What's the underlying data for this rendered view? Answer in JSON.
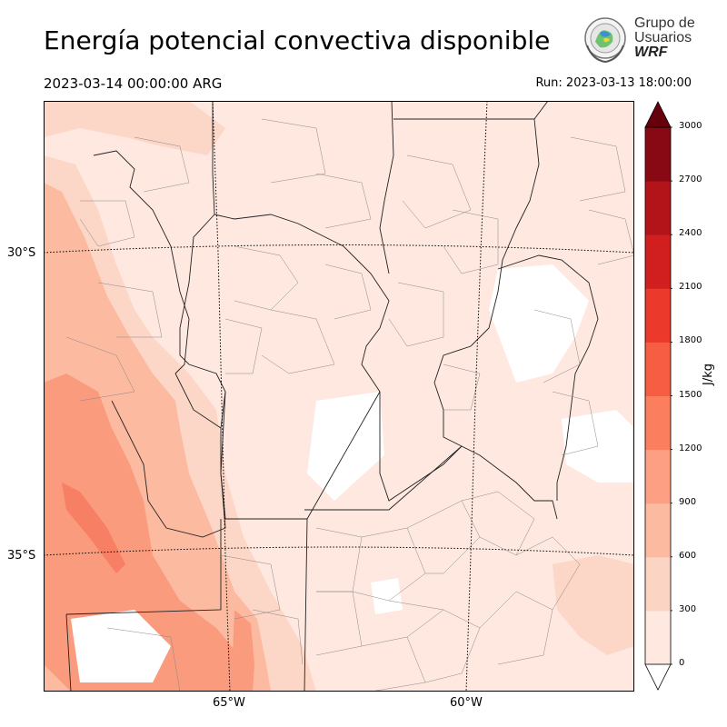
{
  "header": {
    "title": "Energía potencial convectiva disponible",
    "valid_time": "2023-03-14 00:00:00 ARG",
    "run_time": "Run: 2023-03-13 18:00:00"
  },
  "logo": {
    "line1": "Grupo de",
    "line2": "Usuarios",
    "line3": "WRF"
  },
  "axes": {
    "lat_labels": [
      "30°S",
      "35°S"
    ],
    "lon_labels": [
      "65°W",
      "60°W"
    ]
  },
  "colorbar": {
    "unit": "J/kg",
    "ticks": [
      "0",
      "300",
      "600",
      "900",
      "1200",
      "1500",
      "1800",
      "2100",
      "2400",
      "2700",
      "3000"
    ],
    "colors": [
      "#fee8e0",
      "#fcd4c4",
      "#fcbba1",
      "#fc9f82",
      "#fb7f5e",
      "#f65d43",
      "#eb3a2c",
      "#d11f1f",
      "#b3141a",
      "#880913",
      "#67000d"
    ]
  },
  "map_colors": {
    "background": "#fee8e0",
    "level1": "#fcd6c6",
    "level2": "#fcbba1",
    "level3": "#fa9b7e",
    "level4": "#f77f63",
    "blank": "#ffffff"
  }
}
